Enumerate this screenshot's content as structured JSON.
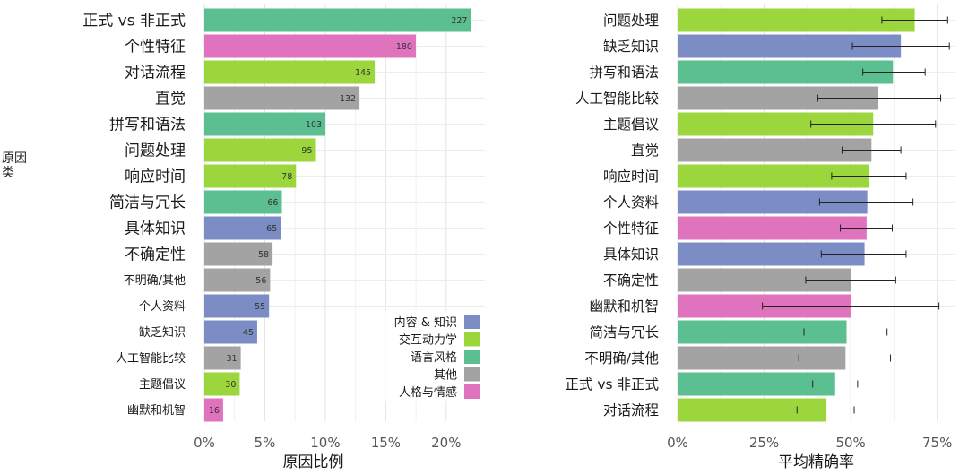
{
  "y_axis_title": "原因\n类",
  "legend": {
    "entries": [
      {
        "label": "内容 & 知识",
        "color": "#7b8dc4"
      },
      {
        "label": "交互动力学",
        "color": "#9bd63c"
      },
      {
        "label": "语言风格",
        "color": "#5bbf91"
      },
      {
        "label": "其他",
        "color": "#a3a3a3"
      },
      {
        "label": "人格与情感",
        "color": "#df73bd"
      }
    ]
  },
  "chart_data": [
    {
      "type": "bar",
      "orientation": "horizontal",
      "xlabel": "原因比例",
      "xlim": [
        0,
        0.232
      ],
      "xticks": [
        0,
        0.05,
        0.1,
        0.15,
        0.2
      ],
      "xtick_labels": [
        "0%",
        "5%",
        "10%",
        "15%",
        "20%"
      ],
      "grid": true,
      "legend_position": "bottom-right",
      "categories": [
        "正式 vs 非正式",
        "个性特征",
        "对话流程",
        "直觉",
        "拼写和语法",
        "问题处理",
        "响应时间",
        "简洁与冗长",
        "具体知识",
        "不确定性",
        "不明确/其他",
        "个人资料",
        "缺乏知识",
        "人工智能比较",
        "主题倡议",
        "幽默和机智"
      ],
      "groups": [
        "语言风格",
        "人格与情感",
        "交互动力学",
        "其他",
        "语言风格",
        "交互动力学",
        "交互动力学",
        "语言风格",
        "内容 & 知识",
        "其他",
        "其他",
        "内容 & 知识",
        "内容 & 知识",
        "其他",
        "交互动力学",
        "人格与情感"
      ],
      "values": [
        0.2205,
        0.1749,
        0.1409,
        0.1283,
        0.1001,
        0.0923,
        0.0758,
        0.0641,
        0.0632,
        0.0564,
        0.0544,
        0.0535,
        0.0437,
        0.0301,
        0.0292,
        0.0155
      ],
      "data_labels": [
        "227",
        "180",
        "145",
        "132",
        "103",
        "95",
        "78",
        "66",
        "65",
        "58",
        "56",
        "55",
        "45",
        "31",
        "30",
        "16"
      ]
    },
    {
      "type": "bar",
      "orientation": "horizontal",
      "xlabel": "平均精确率",
      "xlim": [
        0,
        0.8
      ],
      "xticks": [
        0,
        0.25,
        0.5,
        0.75
      ],
      "xtick_labels": [
        "0%",
        "25%",
        "50%",
        "75%"
      ],
      "grid": true,
      "error_bars": true,
      "categories": [
        "问题处理",
        "缺乏知识",
        "拼写和语法",
        "人工智能比较",
        "主题倡议",
        "直觉",
        "响应时间",
        "个人资料",
        "个性特征",
        "具体知识",
        "不确定性",
        "幽默和机智",
        "简洁与冗长",
        "不明确/其他",
        "正式 vs 非正式",
        "对话流程"
      ],
      "groups": [
        "交互动力学",
        "内容 & 知识",
        "语言风格",
        "其他",
        "交互动力学",
        "其他",
        "交互动力学",
        "内容 & 知识",
        "人格与情感",
        "内容 & 知识",
        "其他",
        "人格与情感",
        "语言风格",
        "其他",
        "语言风格",
        "交互动力学"
      ],
      "values": [
        0.685,
        0.645,
        0.622,
        0.58,
        0.565,
        0.56,
        0.552,
        0.548,
        0.546,
        0.54,
        0.5,
        0.5,
        0.488,
        0.485,
        0.455,
        0.43
      ],
      "error_low": [
        0.59,
        0.505,
        0.535,
        0.405,
        0.385,
        0.475,
        0.445,
        0.41,
        0.47,
        0.415,
        0.37,
        0.245,
        0.365,
        0.35,
        0.39,
        0.345
      ],
      "error_high": [
        0.78,
        0.785,
        0.715,
        0.76,
        0.745,
        0.645,
        0.66,
        0.68,
        0.62,
        0.66,
        0.63,
        0.755,
        0.605,
        0.615,
        0.52,
        0.51
      ]
    }
  ]
}
